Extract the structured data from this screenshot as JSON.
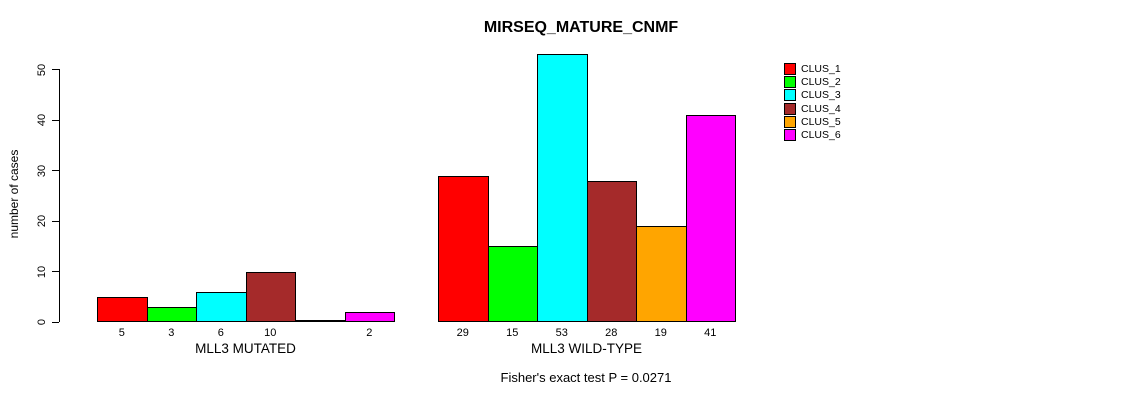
{
  "chart_data": {
    "type": "bar",
    "title": "MIRSEQ_MATURE_CNMF",
    "ylabel": "number of cases",
    "footnote": "Fisher's exact test P = 0.0271",
    "ylim": [
      0,
      50
    ],
    "yticks": [
      0,
      10,
      20,
      30,
      40,
      50
    ],
    "grid": false,
    "legend_position": "right",
    "clusters": [
      {
        "name": "CLUS_1",
        "color": "#FF0000"
      },
      {
        "name": "CLUS_2",
        "color": "#00FF00"
      },
      {
        "name": "CLUS_3",
        "color": "#00FFFF"
      },
      {
        "name": "CLUS_4",
        "color": "#A52A2A"
      },
      {
        "name": "CLUS_5",
        "color": "#FFA500"
      },
      {
        "name": "CLUS_6",
        "color": "#FF00FF"
      }
    ],
    "groups": [
      {
        "label": "MLL3 MUTATED",
        "values": [
          5,
          3,
          6,
          10,
          0,
          2
        ],
        "bar_labels": [
          "5",
          "3",
          "6",
          "10",
          "",
          "2"
        ]
      },
      {
        "label": "MLL3 WILD-TYPE",
        "values": [
          29,
          15,
          53,
          28,
          19,
          41
        ],
        "bar_labels": [
          "29",
          "15",
          "53",
          "28",
          "19",
          "41"
        ]
      }
    ]
  }
}
